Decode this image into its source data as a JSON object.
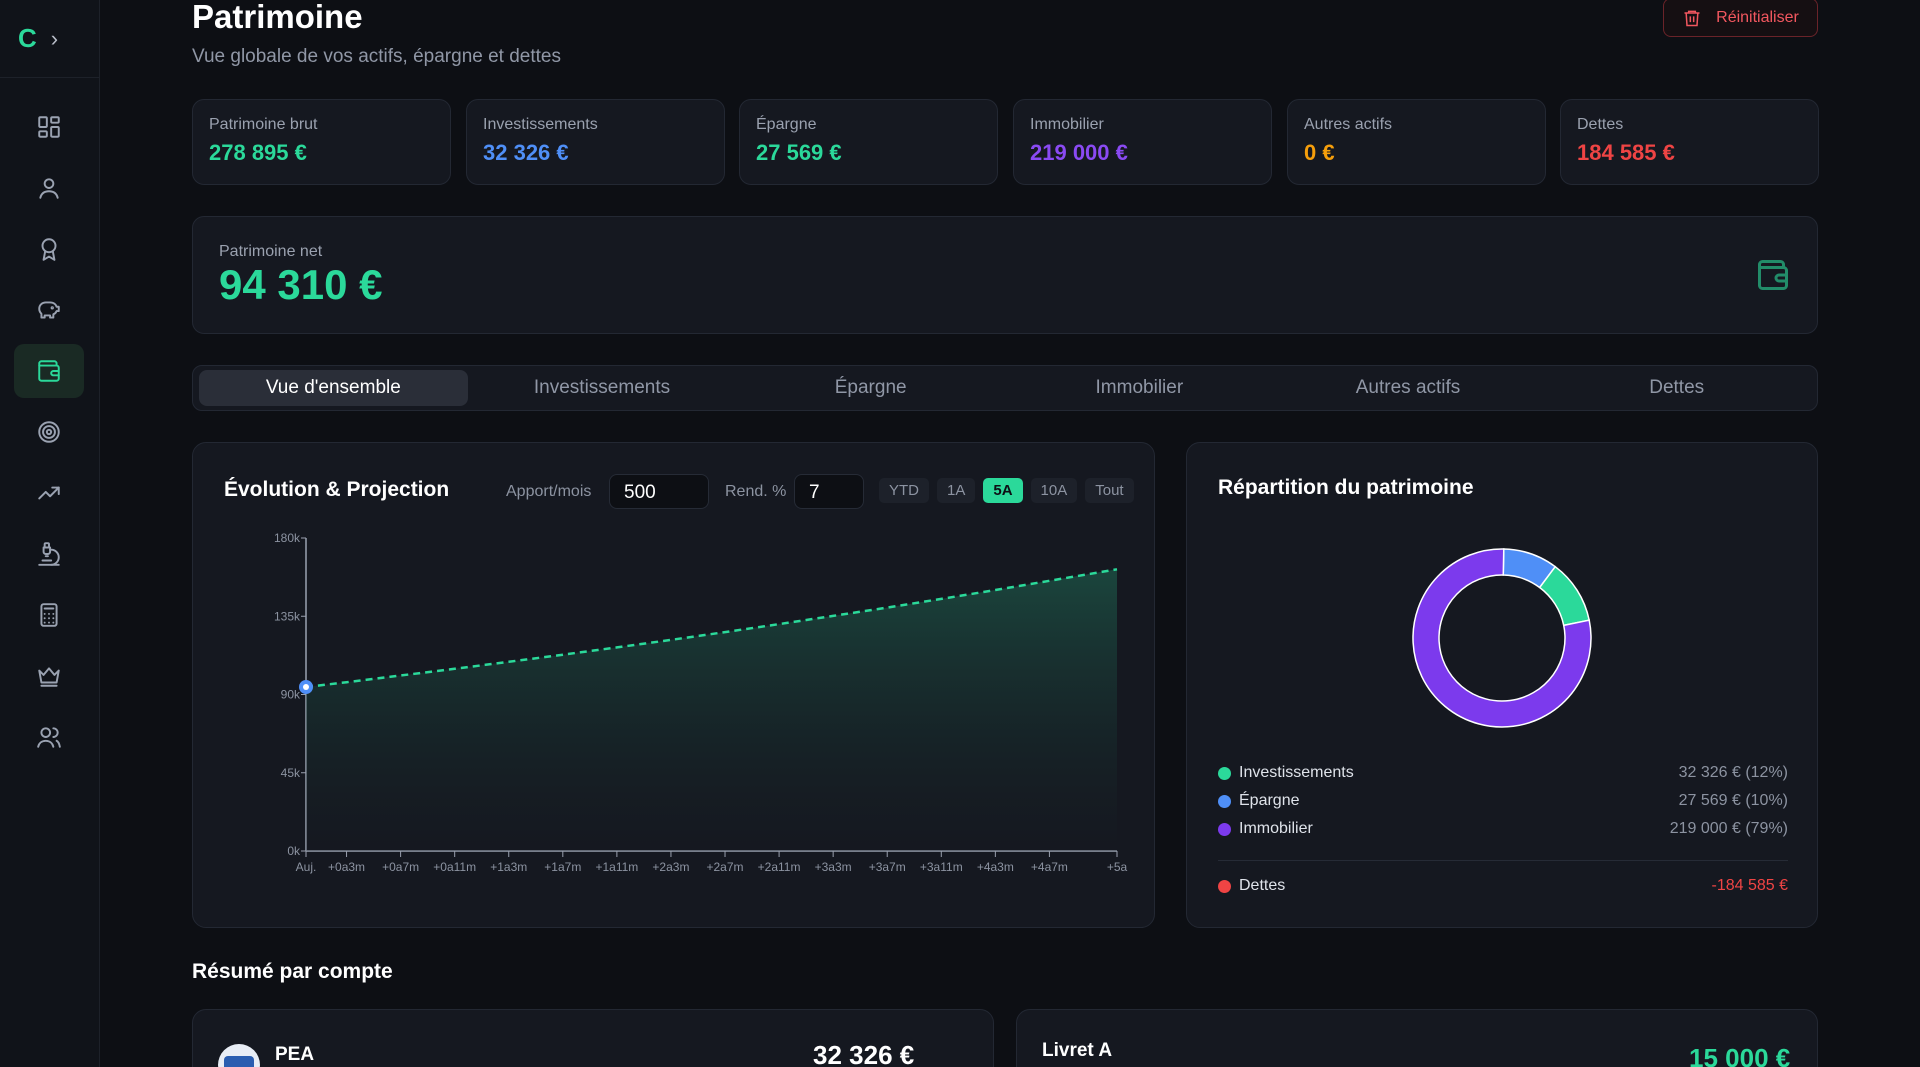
{
  "sidebar": {
    "logo": "C",
    "toggle": "›",
    "items": [
      {
        "icon": "dashboard-icon",
        "active": false
      },
      {
        "icon": "user-icon",
        "active": false
      },
      {
        "icon": "award-icon",
        "active": false
      },
      {
        "icon": "piggy-bank-icon",
        "active": false
      },
      {
        "icon": "wallet-icon",
        "active": true
      },
      {
        "icon": "target-icon",
        "active": false
      },
      {
        "icon": "trending-up-icon",
        "active": false
      },
      {
        "icon": "microscope-icon",
        "active": false
      },
      {
        "icon": "calculator-icon",
        "active": false
      },
      {
        "icon": "crown-icon",
        "active": false
      },
      {
        "icon": "users-icon",
        "active": false
      }
    ]
  },
  "header": {
    "title": "Patrimoine",
    "subtitle": "Vue globale de vos actifs, épargne et dettes",
    "reset_label": "Réinitialiser"
  },
  "stats": [
    {
      "label": "Patrimoine brut",
      "value": "278 895 €",
      "color": "#2bd99a"
    },
    {
      "label": "Investissements",
      "value": "32 326 €",
      "color": "#4f8ff7"
    },
    {
      "label": "Épargne",
      "value": "27 569 €",
      "color": "#2bd99a"
    },
    {
      "label": "Immobilier",
      "value": "219 000 €",
      "color": "#8a4af3"
    },
    {
      "label": "Autres actifs",
      "value": "0 €",
      "color": "#f59e0b"
    },
    {
      "label": "Dettes",
      "value": "184 585 €",
      "color": "#ef4444"
    }
  ],
  "net": {
    "label": "Patrimoine net",
    "value": "94 310 €"
  },
  "tabs": [
    "Vue d'ensemble",
    "Investissements",
    "Épargne",
    "Immobilier",
    "Autres actifs",
    "Dettes"
  ],
  "active_tab": 0,
  "evolution": {
    "title": "Évolution & Projection",
    "apport_label": "Apport/mois",
    "apport_value": "500",
    "rend_label": "Rend. %",
    "rend_value": "7",
    "ranges": [
      "YTD",
      "1A",
      "5A",
      "10A",
      "Tout"
    ],
    "active_range": "5A"
  },
  "chart_data": {
    "type": "area",
    "x": [
      "Auj.",
      "+0a3m",
      "+0a7m",
      "+0a11m",
      "+1a3m",
      "+1a7m",
      "+1a11m",
      "+2a3m",
      "+2a7m",
      "+2a11m",
      "+3a3m",
      "+3a7m",
      "+3a11m",
      "+4a3m",
      "+4a7m",
      "+5a"
    ],
    "x_months": [
      0,
      3,
      7,
      11,
      15,
      19,
      23,
      27,
      31,
      35,
      39,
      43,
      47,
      51,
      55,
      60
    ],
    "series": [
      {
        "values": [
          94310,
          97100,
          100900,
          104800,
          108800,
          112900,
          117100,
          121400,
          125900,
          130500,
          135200,
          140000,
          145000,
          150100,
          155400,
          162000
        ],
        "color": "#2bd99a"
      }
    ],
    "yticks": [
      0,
      45000,
      90000,
      135000,
      180000
    ],
    "ytick_labels": [
      "0k",
      "45k",
      "90k",
      "135k",
      "180k"
    ],
    "ylim": [
      0,
      180000
    ],
    "start_marker_color": "#4f8ff7"
  },
  "repartition": {
    "title": "Répartition du patrimoine",
    "slices": [
      {
        "name": "Investissements",
        "value": 32326,
        "color": "#2bd99a",
        "display": "32 326 € (12%)"
      },
      {
        "name": "Épargne",
        "value": 27569,
        "color": "#4f8ff7",
        "display": "27 569 € (10%)"
      },
      {
        "name": "Immobilier",
        "value": 219000,
        "color": "#7c3aed",
        "display": "219 000 € (79%)"
      }
    ],
    "debt": {
      "name": "Dettes",
      "color": "#ef4444",
      "display": "-184 585 €"
    }
  },
  "resume": {
    "title": "Résumé par compte",
    "accounts": [
      {
        "name": "PEA",
        "value": "32 326 €",
        "color": "#ffffff"
      },
      {
        "name": "Livret A",
        "value": "15 000 €",
        "color": "#2bd99a"
      }
    ]
  }
}
